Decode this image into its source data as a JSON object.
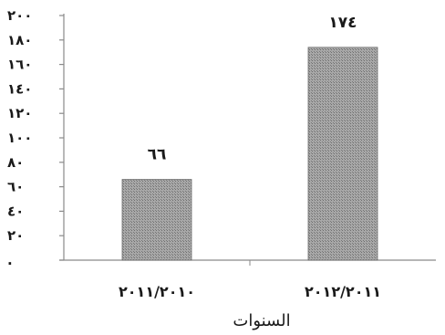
{
  "chart_data": {
    "type": "bar",
    "categories": [
      "٢٠١١/٢٠١٠",
      "٢٠١٢/٢٠١١"
    ],
    "values": [
      66,
      174
    ],
    "value_labels": [
      "٦٦",
      "١٧٤"
    ],
    "xlabel": "السنوات",
    "ylabel": "",
    "ylim": [
      0,
      200
    ],
    "yticks": [
      0,
      20,
      40,
      60,
      80,
      100,
      120,
      140,
      160,
      180,
      200
    ],
    "ytick_labels": [
      ".",
      "٢٠",
      "٤٠",
      "٦٠",
      "٨٠",
      "١٠٠",
      "١٢٠",
      "١٤٠",
      "١٦٠",
      "١٨٠",
      "٢٠٠"
    ],
    "grid": false,
    "legend": "none"
  },
  "colors": {
    "bar": "#9a9a9a",
    "bar_hatch": "#6e6e6e",
    "axis": "#8a8a8a",
    "text": "#1a1a1a"
  }
}
